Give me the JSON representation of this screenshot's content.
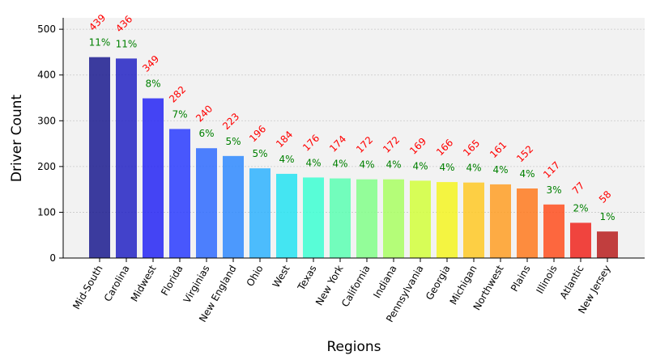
{
  "chart_data": {
    "type": "bar",
    "xlabel": "Regions",
    "ylabel": "Driver Count",
    "ylim": [
      0,
      525
    ],
    "yticks": [
      0,
      100,
      200,
      300,
      400,
      500
    ],
    "grid": true,
    "categories": [
      "Mid-South",
      "Carolina",
      "Midwest",
      "Florida",
      "Virginias",
      "New England",
      "Ohio",
      "West",
      "Texas",
      "New York",
      "California",
      "Indiana",
      "Pennsylvania",
      "Georgia",
      "Michigan",
      "Northwest",
      "Plains",
      "Illinois",
      "Atlantic",
      "New Jersey"
    ],
    "values": [
      439,
      436,
      349,
      282,
      240,
      223,
      196,
      184,
      176,
      174,
      172,
      172,
      169,
      166,
      165,
      161,
      152,
      117,
      77,
      58
    ],
    "value_labels": [
      "439",
      "436",
      "349",
      "282",
      "240",
      "223",
      "196",
      "184",
      "176",
      "174",
      "172",
      "172",
      "169",
      "166",
      "165",
      "161",
      "152",
      "117",
      "77",
      "58"
    ],
    "percent_labels": [
      "11%",
      "11%",
      "8%",
      "7%",
      "6%",
      "5%",
      "5%",
      "4%",
      "4%",
      "4%",
      "4%",
      "4%",
      "4%",
      "4%",
      "4%",
      "4%",
      "4%",
      "3%",
      "2%",
      "1%"
    ],
    "colors": [
      "#1b1b8f",
      "#2323c4",
      "#2626f5",
      "#2a3cff",
      "#2f6bff",
      "#2f8aff",
      "#2fb3ff",
      "#26e3f2",
      "#3dffd2",
      "#5cffb3",
      "#82ff8a",
      "#a9ff63",
      "#d2ff3c",
      "#f5f522",
      "#ffc926",
      "#ff9f26",
      "#ff7a1f",
      "#ff4f1f",
      "#f0261f",
      "#b81e1e"
    ],
    "value_label_color": "#ff0000",
    "percent_label_color": "#008000",
    "plot_background": "#f2f2f2"
  }
}
